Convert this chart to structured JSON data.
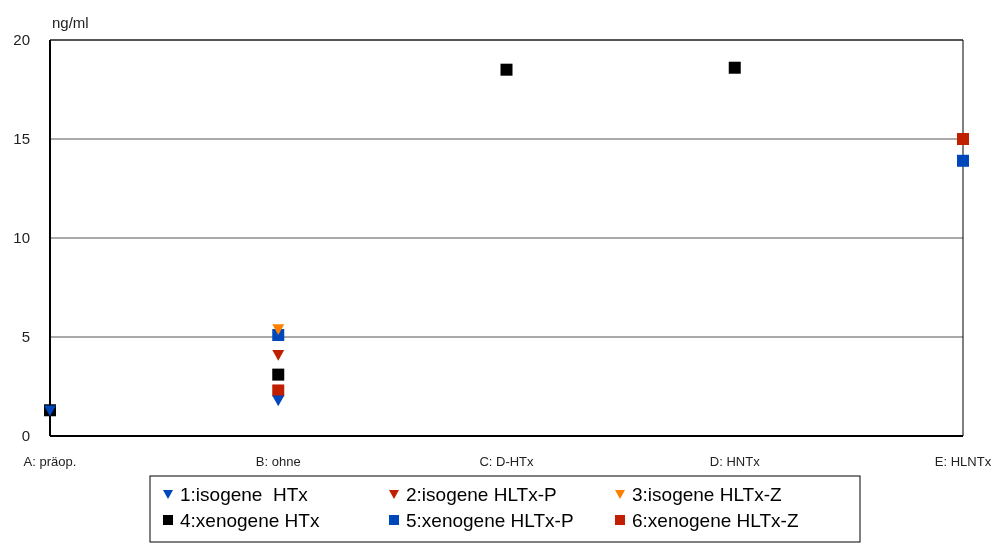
{
  "chart_data": {
    "type": "scatter",
    "ylabel": "ng/ml",
    "categories": [
      "A: präop.",
      "B: ohne",
      "C: D-HTx",
      "D: HNTx",
      "E: HLNTx"
    ],
    "ylim": [
      0,
      20
    ],
    "yticks": [
      0,
      5,
      10,
      15,
      20
    ],
    "grid": "y",
    "legend": "bottom",
    "series": [
      {
        "name": "1:isogene  HTx",
        "color": "#0047bb",
        "marker": "triangle",
        "values": [
          1.3,
          1.8,
          null,
          null,
          null
        ]
      },
      {
        "name": "2:isogene HLTx-P",
        "color": "#c02000",
        "marker": "triangle",
        "values": [
          null,
          4.1,
          null,
          null,
          null
        ]
      },
      {
        "name": "3:isogene HLTx-Z",
        "color": "#ff8000",
        "marker": "triangle",
        "values": [
          null,
          5.4,
          null,
          null,
          null
        ]
      },
      {
        "name": "4:xenogene HTx",
        "color": "#000000",
        "marker": "square",
        "values": [
          1.3,
          3.1,
          18.5,
          18.6,
          null
        ]
      },
      {
        "name": "5:xenogene HLTx-P",
        "color": "#0047bb",
        "marker": "square",
        "values": [
          null,
          5.1,
          null,
          null,
          13.9
        ]
      },
      {
        "name": "6:xenogene HLTx-Z",
        "color": "#c02000",
        "marker": "square",
        "values": [
          null,
          2.3,
          null,
          null,
          15.0
        ]
      }
    ]
  }
}
